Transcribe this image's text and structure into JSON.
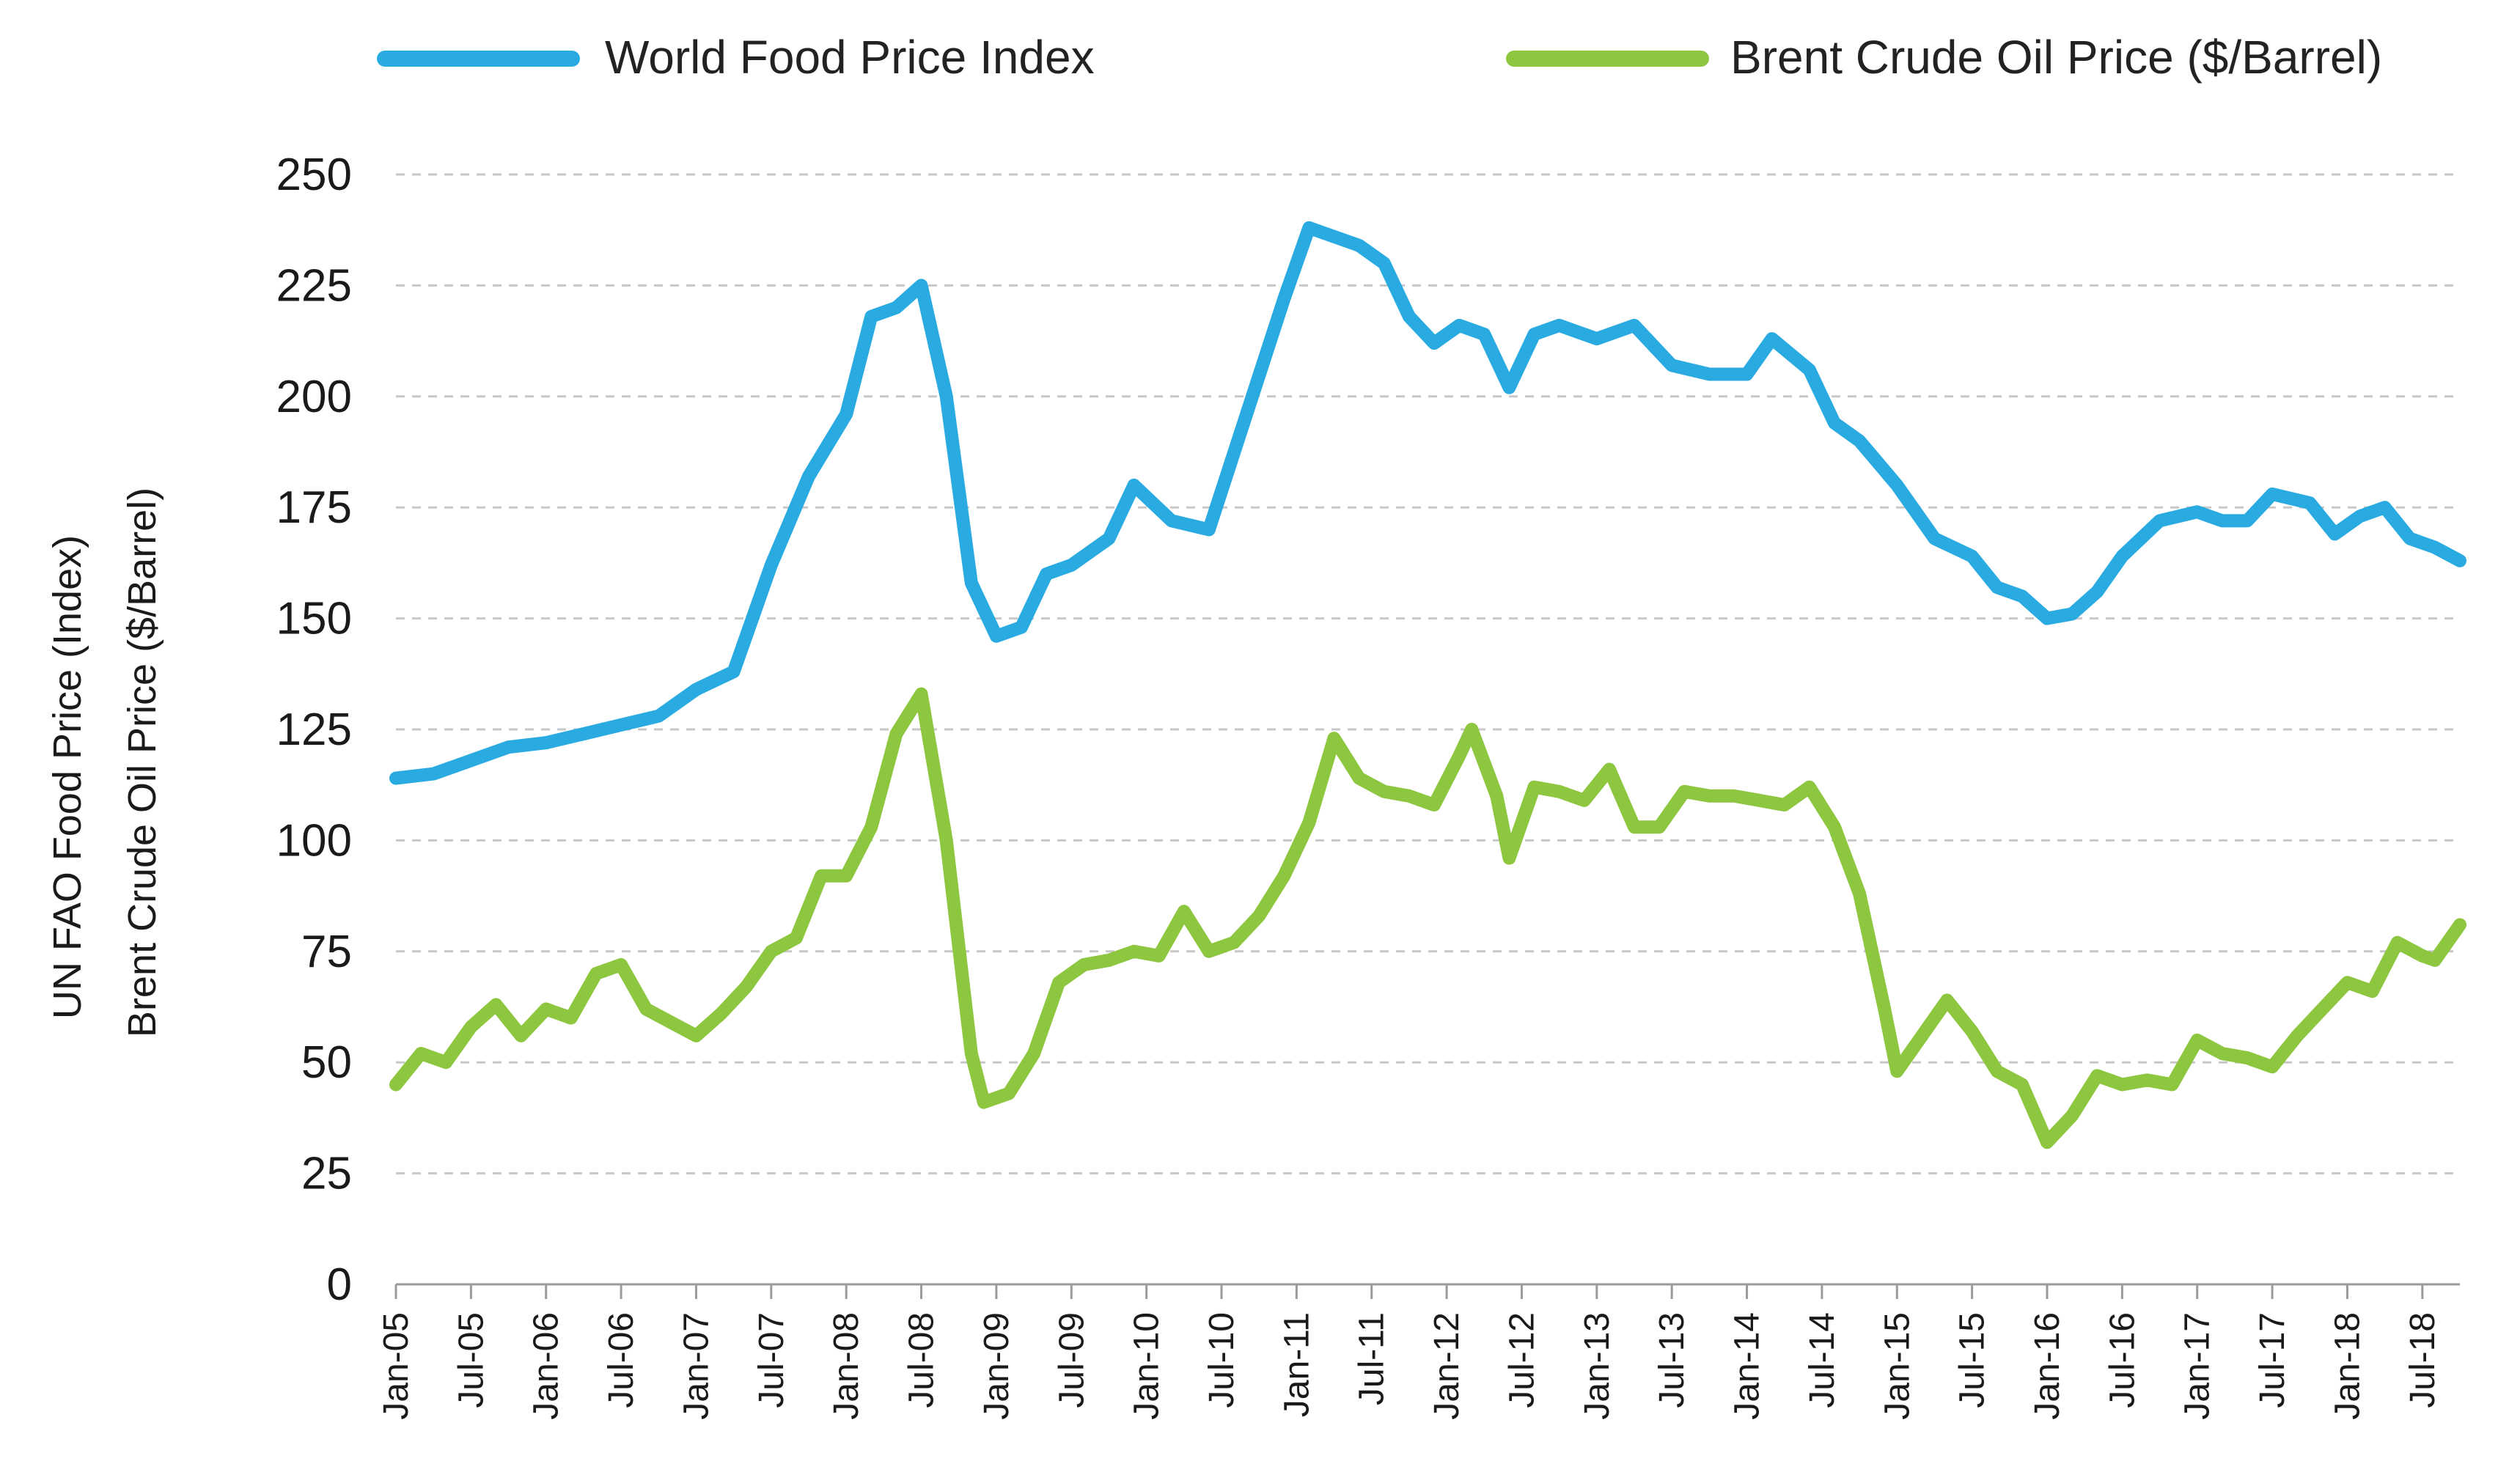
{
  "chart_data": {
    "type": "line",
    "title": "",
    "ylabel_lines": [
      "UN FAO Food Price (Index)",
      "Brent Crude Oil Price ($/Barrel)"
    ],
    "xlabel": "",
    "ylim": [
      0,
      250
    ],
    "yticks": [
      0,
      25,
      50,
      75,
      100,
      125,
      150,
      175,
      200,
      225,
      250
    ],
    "grid": "horizontal-dashed",
    "legend_position": "top",
    "x_start": "Jan-05",
    "x_end": "Oct-18",
    "xtick_labels": [
      "Jan-05",
      "Jul-05",
      "Jan-06",
      "Jul-06",
      "Jan-07",
      "Jul-07",
      "Jan-08",
      "Jul-08",
      "Jan-09",
      "Jul-09",
      "Jan-10",
      "Jul-10",
      "Jan-11",
      "Jul-11",
      "Jan-12",
      "Jul-12",
      "Jan-13",
      "Jul-13",
      "Jan-14",
      "Jul-14",
      "Jan-15",
      "Jul-15",
      "Jan-16",
      "Jul-16",
      "Jan-17",
      "Jul-17",
      "Jan-18",
      "Jul-18"
    ],
    "series": [
      {
        "name": "World Food Price Index",
        "color": "#29ABE2",
        "points": [
          [
            "Jan-05",
            114
          ],
          [
            "Apr-05",
            115
          ],
          [
            "Jul-05",
            118
          ],
          [
            "Oct-05",
            121
          ],
          [
            "Jan-06",
            122
          ],
          [
            "Apr-06",
            124
          ],
          [
            "Jul-06",
            126
          ],
          [
            "Oct-06",
            128
          ],
          [
            "Jan-07",
            134
          ],
          [
            "Apr-07",
            138
          ],
          [
            "Jul-07",
            162
          ],
          [
            "Oct-07",
            182
          ],
          [
            "Jan-08",
            196
          ],
          [
            "Mar-08",
            218
          ],
          [
            "May-08",
            220
          ],
          [
            "Jul-08",
            225
          ],
          [
            "Sep-08",
            200
          ],
          [
            "Nov-08",
            158
          ],
          [
            "Jan-09",
            146
          ],
          [
            "Mar-09",
            148
          ],
          [
            "May-09",
            160
          ],
          [
            "Jul-09",
            162
          ],
          [
            "Oct-09",
            168
          ],
          [
            "Dec-09",
            180
          ],
          [
            "Mar-10",
            172
          ],
          [
            "Jun-10",
            170
          ],
          [
            "Sep-10",
            196
          ],
          [
            "Dec-10",
            222
          ],
          [
            "Feb-11",
            238
          ],
          [
            "Apr-11",
            236
          ],
          [
            "Jun-11",
            234
          ],
          [
            "Aug-11",
            230
          ],
          [
            "Oct-11",
            218
          ],
          [
            "Dec-11",
            212
          ],
          [
            "Feb-12",
            216
          ],
          [
            "Apr-12",
            214
          ],
          [
            "Jun-12",
            202
          ],
          [
            "Aug-12",
            214
          ],
          [
            "Oct-12",
            216
          ],
          [
            "Jan-13",
            213
          ],
          [
            "Apr-13",
            216
          ],
          [
            "Jul-13",
            207
          ],
          [
            "Oct-13",
            205
          ],
          [
            "Jan-14",
            205
          ],
          [
            "Mar-14",
            213
          ],
          [
            "Jun-14",
            206
          ],
          [
            "Aug-14",
            194
          ],
          [
            "Oct-14",
            190
          ],
          [
            "Jan-15",
            180
          ],
          [
            "Apr-15",
            168
          ],
          [
            "Jul-15",
            164
          ],
          [
            "Sep-15",
            157
          ],
          [
            "Nov-15",
            155
          ],
          [
            "Jan-16",
            150
          ],
          [
            "Mar-16",
            151
          ],
          [
            "May-16",
            156
          ],
          [
            "Jul-16",
            164
          ],
          [
            "Oct-16",
            172
          ],
          [
            "Jan-17",
            174
          ],
          [
            "Mar-17",
            172
          ],
          [
            "May-17",
            172
          ],
          [
            "Jul-17",
            178
          ],
          [
            "Oct-17",
            176
          ],
          [
            "Dec-17",
            169
          ],
          [
            "Feb-18",
            173
          ],
          [
            "Apr-18",
            175
          ],
          [
            "Jun-18",
            168
          ],
          [
            "Aug-18",
            166
          ],
          [
            "Oct-18",
            163
          ]
        ]
      },
      {
        "name": "Brent Crude Oil Price ($/Barrel)",
        "color": "#8DC63F",
        "points": [
          [
            "Jan-05",
            45
          ],
          [
            "Mar-05",
            52
          ],
          [
            "May-05",
            50
          ],
          [
            "Jul-05",
            58
          ],
          [
            "Sep-05",
            63
          ],
          [
            "Nov-05",
            56
          ],
          [
            "Jan-06",
            62
          ],
          [
            "Mar-06",
            60
          ],
          [
            "May-06",
            70
          ],
          [
            "Jul-06",
            72
          ],
          [
            "Sep-06",
            62
          ],
          [
            "Nov-06",
            59
          ],
          [
            "Jan-07",
            56
          ],
          [
            "Mar-07",
            61
          ],
          [
            "May-07",
            67
          ],
          [
            "Jul-07",
            75
          ],
          [
            "Sep-07",
            78
          ],
          [
            "Nov-07",
            92
          ],
          [
            "Jan-08",
            92
          ],
          [
            "Mar-08",
            103
          ],
          [
            "May-08",
            124
          ],
          [
            "Jul-08",
            133
          ],
          [
            "Sep-08",
            100
          ],
          [
            "Nov-08",
            52
          ],
          [
            "Dec-08",
            41
          ],
          [
            "Feb-09",
            43
          ],
          [
            "Apr-09",
            52
          ],
          [
            "Jun-09",
            68
          ],
          [
            "Aug-09",
            72
          ],
          [
            "Oct-09",
            73
          ],
          [
            "Dec-09",
            75
          ],
          [
            "Feb-10",
            74
          ],
          [
            "Apr-10",
            84
          ],
          [
            "Jun-10",
            75
          ],
          [
            "Aug-10",
            77
          ],
          [
            "Oct-10",
            83
          ],
          [
            "Dec-10",
            92
          ],
          [
            "Feb-11",
            104
          ],
          [
            "Apr-11",
            123
          ],
          [
            "Jun-11",
            114
          ],
          [
            "Aug-11",
            111
          ],
          [
            "Oct-11",
            110
          ],
          [
            "Dec-11",
            108
          ],
          [
            "Feb-12",
            119
          ],
          [
            "Mar-12",
            125
          ],
          [
            "May-12",
            110
          ],
          [
            "Jun-12",
            96
          ],
          [
            "Aug-12",
            112
          ],
          [
            "Oct-12",
            111
          ],
          [
            "Dec-12",
            109
          ],
          [
            "Feb-13",
            116
          ],
          [
            "Apr-13",
            103
          ],
          [
            "Jun-13",
            103
          ],
          [
            "Aug-13",
            111
          ],
          [
            "Oct-13",
            110
          ],
          [
            "Dec-13",
            110
          ],
          [
            "Feb-14",
            109
          ],
          [
            "Apr-14",
            108
          ],
          [
            "Jun-14",
            112
          ],
          [
            "Aug-14",
            103
          ],
          [
            "Oct-14",
            88
          ],
          [
            "Dec-14",
            62
          ],
          [
            "Jan-15",
            48
          ],
          [
            "Mar-15",
            56
          ],
          [
            "May-15",
            64
          ],
          [
            "Jul-15",
            57
          ],
          [
            "Sep-15",
            48
          ],
          [
            "Nov-15",
            45
          ],
          [
            "Jan-16",
            32
          ],
          [
            "Mar-16",
            38
          ],
          [
            "May-16",
            47
          ],
          [
            "Jul-16",
            45
          ],
          [
            "Sep-16",
            46
          ],
          [
            "Nov-16",
            45
          ],
          [
            "Jan-17",
            55
          ],
          [
            "Mar-17",
            52
          ],
          [
            "May-17",
            51
          ],
          [
            "Jul-17",
            49
          ],
          [
            "Sep-17",
            56
          ],
          [
            "Nov-17",
            62
          ],
          [
            "Jan-18",
            68
          ],
          [
            "Mar-18",
            66
          ],
          [
            "May-18",
            77
          ],
          [
            "Jul-18",
            74
          ],
          [
            "Aug-18",
            73
          ],
          [
            "Oct-18",
            81
          ]
        ]
      }
    ]
  }
}
